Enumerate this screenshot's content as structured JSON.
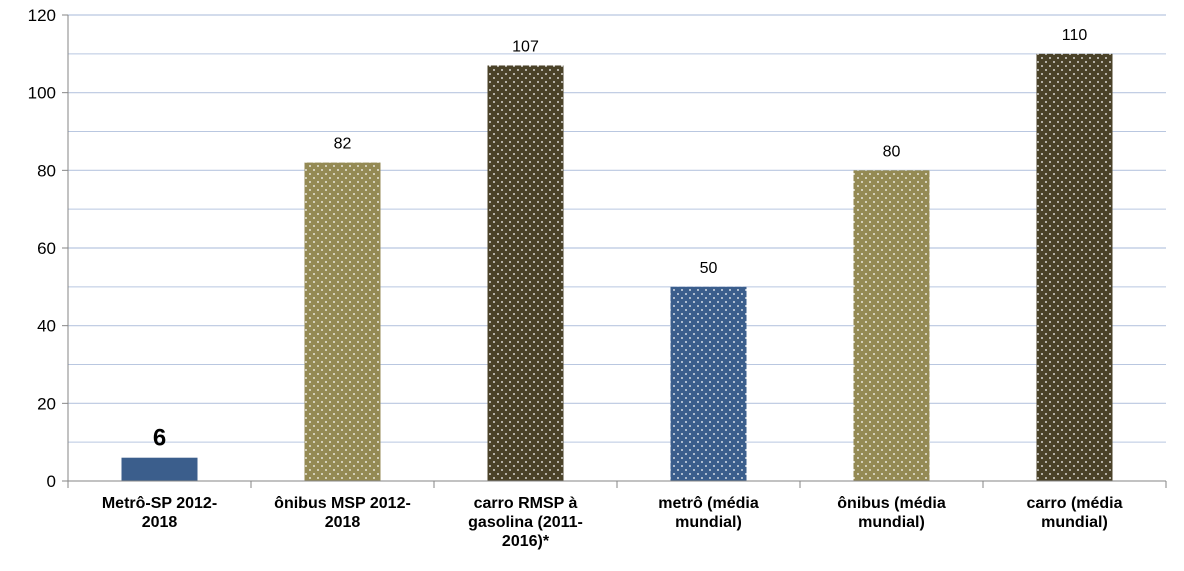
{
  "chart_data": {
    "type": "bar",
    "categories": [
      "Metrô-SP 2012-2018",
      "ônibus MSP 2012-2018",
      "carro RMSP à gasolina (2011-2016)*",
      "metrô (média mundial)",
      "ônibus (média mundial)",
      "carro (média mundial)"
    ],
    "values": [
      6,
      82,
      107,
      50,
      80,
      110
    ],
    "data_labels": [
      "6",
      "82",
      "107",
      "50",
      "80",
      "110"
    ],
    "ylim": [
      0,
      120
    ],
    "yticks": [
      0,
      20,
      40,
      60,
      80,
      100,
      120
    ],
    "grid": true,
    "legend": "none",
    "title": "",
    "xlabel": "",
    "ylabel": ""
  },
  "category_lines": [
    [
      "Metrô-SP 2012-",
      "2018"
    ],
    [
      "ônibus MSP 2012-",
      "2018"
    ],
    [
      "carro RMSP à",
      "gasolina (2011-",
      "2016)*"
    ],
    [
      "metrô (média",
      "mundial)"
    ],
    [
      "ônibus (média",
      "mundial)"
    ],
    [
      "carro (média",
      "mundial)"
    ]
  ],
  "bar_colors": [
    "#3b5e8c",
    "#948a54",
    "#4a4228",
    "#3b5e8c",
    "#948a54",
    "#4a4228"
  ],
  "bar_fills": [
    "solid",
    "dotted",
    "dotted",
    "dotted",
    "dotted",
    "dotted"
  ],
  "grid_color": "#b9c7e0"
}
